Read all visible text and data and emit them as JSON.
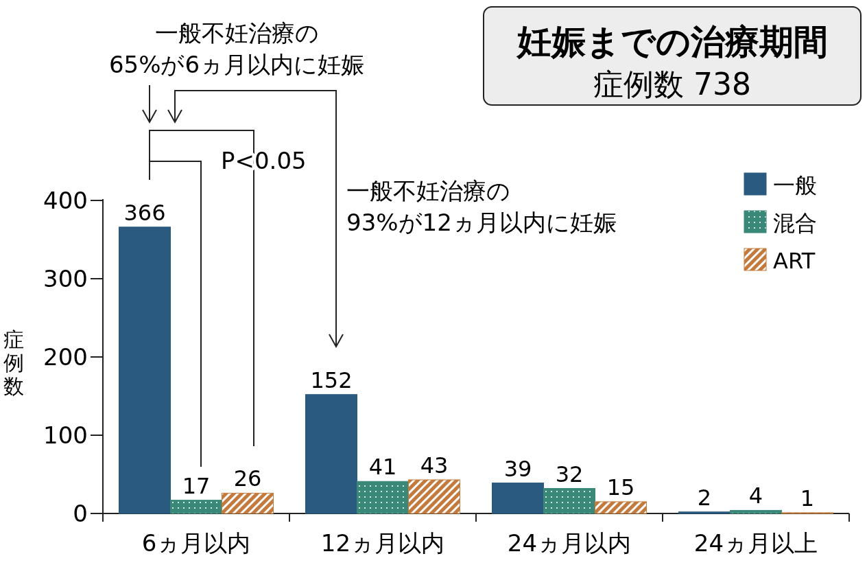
{
  "chart_data": {
    "type": "bar",
    "title": "妊娠までの治療期間",
    "subtitle": "症例数 738",
    "ylabel": "症例数",
    "categories": [
      "6ヵ月以内",
      "12ヵ月以内",
      "24ヵ月以内",
      "24ヵ月以上"
    ],
    "series": [
      {
        "name": "一般",
        "color": "#2b5a80",
        "values": [
          366,
          152,
          39,
          2
        ]
      },
      {
        "name": "混合",
        "color": "#3a8878",
        "values": [
          17,
          41,
          32,
          4
        ]
      },
      {
        "name": "ART",
        "color": "#c47a3c",
        "values": [
          26,
          43,
          15,
          1
        ]
      }
    ],
    "ylim": [
      0,
      400
    ],
    "yticks": [
      0,
      100,
      200,
      300,
      400
    ],
    "data_labels": true,
    "legend": "top right",
    "grid": false,
    "annotations": [
      "一般不妊治療の\n65%が6ヵ月以内に妊娠",
      "P<0.05",
      "一般不妊治療の\n93%が12ヵ月以内に妊娠"
    ]
  }
}
